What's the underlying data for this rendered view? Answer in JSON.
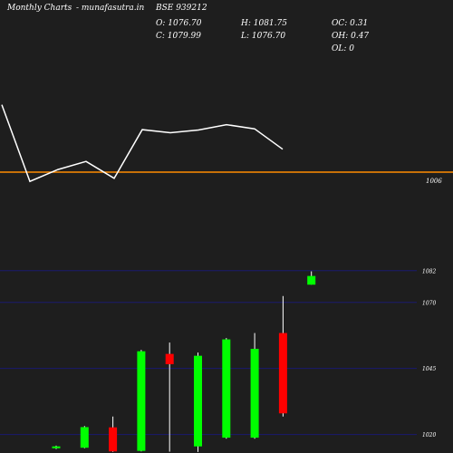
{
  "header": {
    "site_title": "Monthly Charts",
    "site_sub": "- munafasutra.in",
    "symbol": "BSE 939212",
    "o": "O: 1076.70",
    "h": "H: 1081.75",
    "oc": "OC: 0.31",
    "c": "C: 1079.99",
    "l": "L: 1076.70",
    "oh": "OH: 0.47",
    "ol": "OL: 0"
  },
  "colors": {
    "background": "#1e1e1e",
    "line": "#ffffff",
    "reference": "#ff8c00",
    "grid": "#1a1a6e",
    "bull": "#00ff00",
    "bear": "#ff0000",
    "wick": "#ffffff"
  },
  "chart_data": [
    {
      "type": "line",
      "panel": "top",
      "x": [
        1,
        2,
        3,
        4,
        5,
        6,
        7,
        8,
        9,
        10,
        11
      ],
      "y": [
        1054.5,
        1034.5,
        1037.6,
        1039.7,
        1035.3,
        1048.0,
        1047.2,
        1047.9,
        1049.3,
        1048.2,
        1042.9
      ],
      "reference_value": 1036.9,
      "tick_labels": [
        "1006"
      ]
    },
    {
      "type": "candlestick",
      "panel": "bottom",
      "ylim": [
        1013,
        1085
      ],
      "gridlines": [
        1082,
        1070,
        1045,
        1020
      ],
      "tick_labels": [
        "1082",
        "1070",
        "1045",
        "1020"
      ],
      "candles": [
        {
          "open": 1014.8,
          "close": 1015.5,
          "high": 1015.8,
          "low": 1014.5
        },
        {
          "open": 1015.0,
          "close": 1022.8,
          "high": 1023.2,
          "low": 1014.8
        },
        {
          "open": 1022.7,
          "close": 1013.6,
          "high": 1026.8,
          "low": 1013.4
        },
        {
          "open": 1013.8,
          "close": 1051.5,
          "high": 1052.0,
          "low": 1013.6
        },
        {
          "open": 1050.5,
          "close": 1046.6,
          "high": 1054.8,
          "low": 1013.5
        },
        {
          "open": 1015.5,
          "close": 1049.8,
          "high": 1051.0,
          "low": 1013.4
        },
        {
          "open": 1018.8,
          "close": 1056.0,
          "high": 1056.5,
          "low": 1018.4
        },
        {
          "open": 1018.8,
          "close": 1052.4,
          "high": 1058.4,
          "low": 1018.4
        },
        {
          "open": 1058.4,
          "close": 1028.0,
          "high": 1072.4,
          "low": 1026.8
        },
        {
          "open": 1076.7,
          "close": 1079.99,
          "high": 1081.75,
          "low": 1076.7
        }
      ]
    }
  ]
}
